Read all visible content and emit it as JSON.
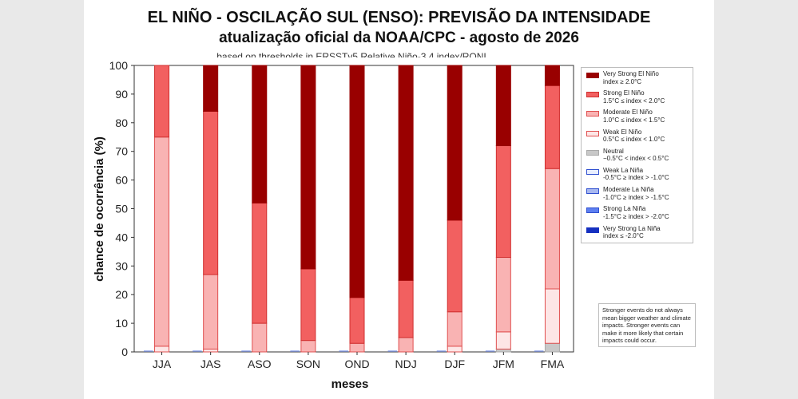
{
  "title_line1": "EL NIÑO - OSCILAÇÃO SUL (ENSO): PREVISÃO DA INTENSIDADE",
  "title_line2": "atualização oficial da NOAA/CPC - agosto de 2026",
  "subtitle": "based on thresholds in ERSSTv5 Relative Niño-3.4 index/RONI",
  "xlabel": "meses",
  "ylabel": "chance de ocorrência (%)",
  "note": "Stronger events do not always mean bigger weather and climate impacts. Stronger events can make it more likely that certain impacts could occur.",
  "legend": [
    {
      "line1": "Very Strong El Niño",
      "line2": "index ≥ 2.0°C",
      "color": "#990000",
      "border": "#990000"
    },
    {
      "line1": "Strong El Niño",
      "line2": "1.5°C ≤ index < 2.0°C",
      "color": "#f26060",
      "border": "#d03030"
    },
    {
      "line1": "Moderate El Niño",
      "line2": "1.0°C ≤ index < 1.5°C",
      "color": "#f9b3b3",
      "border": "#e05050"
    },
    {
      "line1": "Weak El Niño",
      "line2": "0.5°C ≤ index < 1.0°C",
      "color": "#fde6e6",
      "border": "#e05050"
    },
    {
      "line1": "Neutral",
      "line2": "−0.5°C < index < 0.5°C",
      "color": "#c8c8c8",
      "border": "#aaaaaa"
    },
    {
      "line1": "Weak La Niña",
      "line2": "-0.5°C ≥ index > -1.0°C",
      "color": "#e8eeff",
      "border": "#3050d0"
    },
    {
      "line1": "Moderate La Niña",
      "line2": "-1.0°C ≥ index > -1.5°C",
      "color": "#a8b8f0",
      "border": "#3050d0"
    },
    {
      "line1": "Strong La Niña",
      "line2": "-1.5°C ≥ index > -2.0°C",
      "color": "#5d7ff0",
      "border": "#3050d0"
    },
    {
      "line1": "Very Strong La Niña",
      "line2": "index ≤ -2.0°C",
      "color": "#1530c0",
      "border": "#1530c0"
    }
  ],
  "chart_data": {
    "type": "bar",
    "stacked": true,
    "categories": [
      "JJA",
      "JAS",
      "ASO",
      "SON",
      "OND",
      "NDJ",
      "DJF",
      "JFM",
      "FMA"
    ],
    "ylim": [
      0,
      100
    ],
    "yticks": [
      0,
      10,
      20,
      30,
      40,
      50,
      60,
      70,
      80,
      90,
      100
    ],
    "ylabel": "chance de ocorrência (%)",
    "xlabel": "meses",
    "legend_position": "right",
    "series": [
      {
        "name": "Very Strong La Niña",
        "color": "#1530c0",
        "border": "#1530c0",
        "values": [
          0,
          0,
          0,
          0,
          0,
          0,
          0,
          0,
          0
        ]
      },
      {
        "name": "Strong La Niña",
        "color": "#5d7ff0",
        "border": "#3050d0",
        "values": [
          0,
          0,
          0,
          0,
          0,
          0,
          0,
          0,
          0
        ]
      },
      {
        "name": "Moderate La Niña",
        "color": "#a8b8f0",
        "border": "#3050d0",
        "values": [
          0,
          0,
          0,
          0,
          0,
          0,
          0,
          0,
          0
        ]
      },
      {
        "name": "Weak La Niña",
        "color": "#e8eeff",
        "border": "#3050d0",
        "values": [
          0,
          0,
          0,
          0,
          0,
          0,
          0,
          0,
          0
        ]
      },
      {
        "name": "Neutral",
        "color": "#c8c8c8",
        "border": "#aaaaaa",
        "values": [
          0,
          0,
          0,
          0,
          0,
          0,
          0,
          1,
          3
        ]
      },
      {
        "name": "Weak El Niño",
        "color": "#fde6e6",
        "border": "#e05050",
        "values": [
          2,
          1,
          0,
          0,
          0,
          0,
          2,
          6,
          19
        ]
      },
      {
        "name": "Moderate El Niño",
        "color": "#f9b3b3",
        "border": "#e05050",
        "values": [
          73,
          26,
          10,
          4,
          3,
          5,
          12,
          26,
          42
        ]
      },
      {
        "name": "Strong El Niño",
        "color": "#f26060",
        "border": "#d03030",
        "values": [
          25,
          57,
          42,
          25,
          16,
          20,
          32,
          39,
          29
        ]
      },
      {
        "name": "Very Strong El Niño",
        "color": "#990000",
        "border": "#990000",
        "values": [
          0,
          16,
          48,
          71,
          81,
          75,
          54,
          28,
          7
        ]
      }
    ]
  }
}
